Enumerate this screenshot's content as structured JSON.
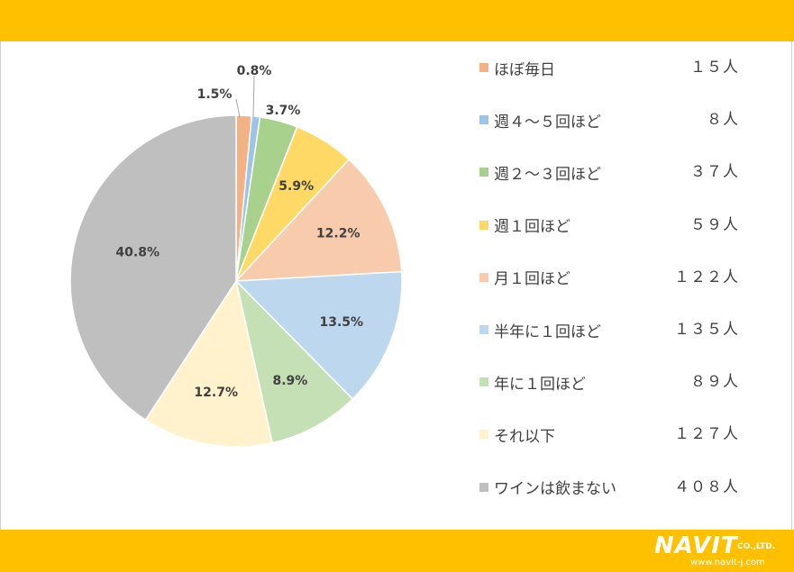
{
  "chart_data": {
    "type": "pie",
    "start_angle_deg": 0,
    "direction": "clockwise",
    "slices": [
      {
        "label": "ほぼ毎日",
        "count_text": "１５人",
        "value": 15,
        "percent_label": "1.5%",
        "color": "#f4b183"
      },
      {
        "label": "週４～５回ほど",
        "count_text": "８人",
        "value": 8,
        "percent_label": "0.8%",
        "color": "#9dc3e6"
      },
      {
        "label": "週２～３回ほど",
        "count_text": "３７人",
        "value": 37,
        "percent_label": "3.7%",
        "color": "#a9d18e"
      },
      {
        "label": "週１回ほど",
        "count_text": "５９人",
        "value": 59,
        "percent_label": "5.9%",
        "color": "#ffd966"
      },
      {
        "label": "月１回ほど",
        "count_text": "１２２人",
        "value": 122,
        "percent_label": "12.2%",
        "color": "#f8cbad"
      },
      {
        "label": "半年に１回ほど",
        "count_text": "１３５人",
        "value": 135,
        "percent_label": "13.5%",
        "color": "#bdd7ee"
      },
      {
        "label": "年に１回ほど",
        "count_text": "８９人",
        "value": 89,
        "percent_label": "8.9%",
        "color": "#c5e0b4"
      },
      {
        "label": "それ以下",
        "count_text": "１２７人",
        "value": 127,
        "percent_label": "12.7%",
        "color": "#fff2cc"
      },
      {
        "label": "ワインは飲まない",
        "count_text": "４０８人",
        "value": 408,
        "percent_label": "40.8%",
        "color": "#bfbfbf"
      }
    ],
    "legend_position": "right"
  },
  "logo": {
    "word": "NAVIT",
    "suffix": "CO.,LTD.",
    "url": "www.navit-j.com"
  },
  "colors": {
    "banner": "#ffc000",
    "text": "#404040"
  }
}
